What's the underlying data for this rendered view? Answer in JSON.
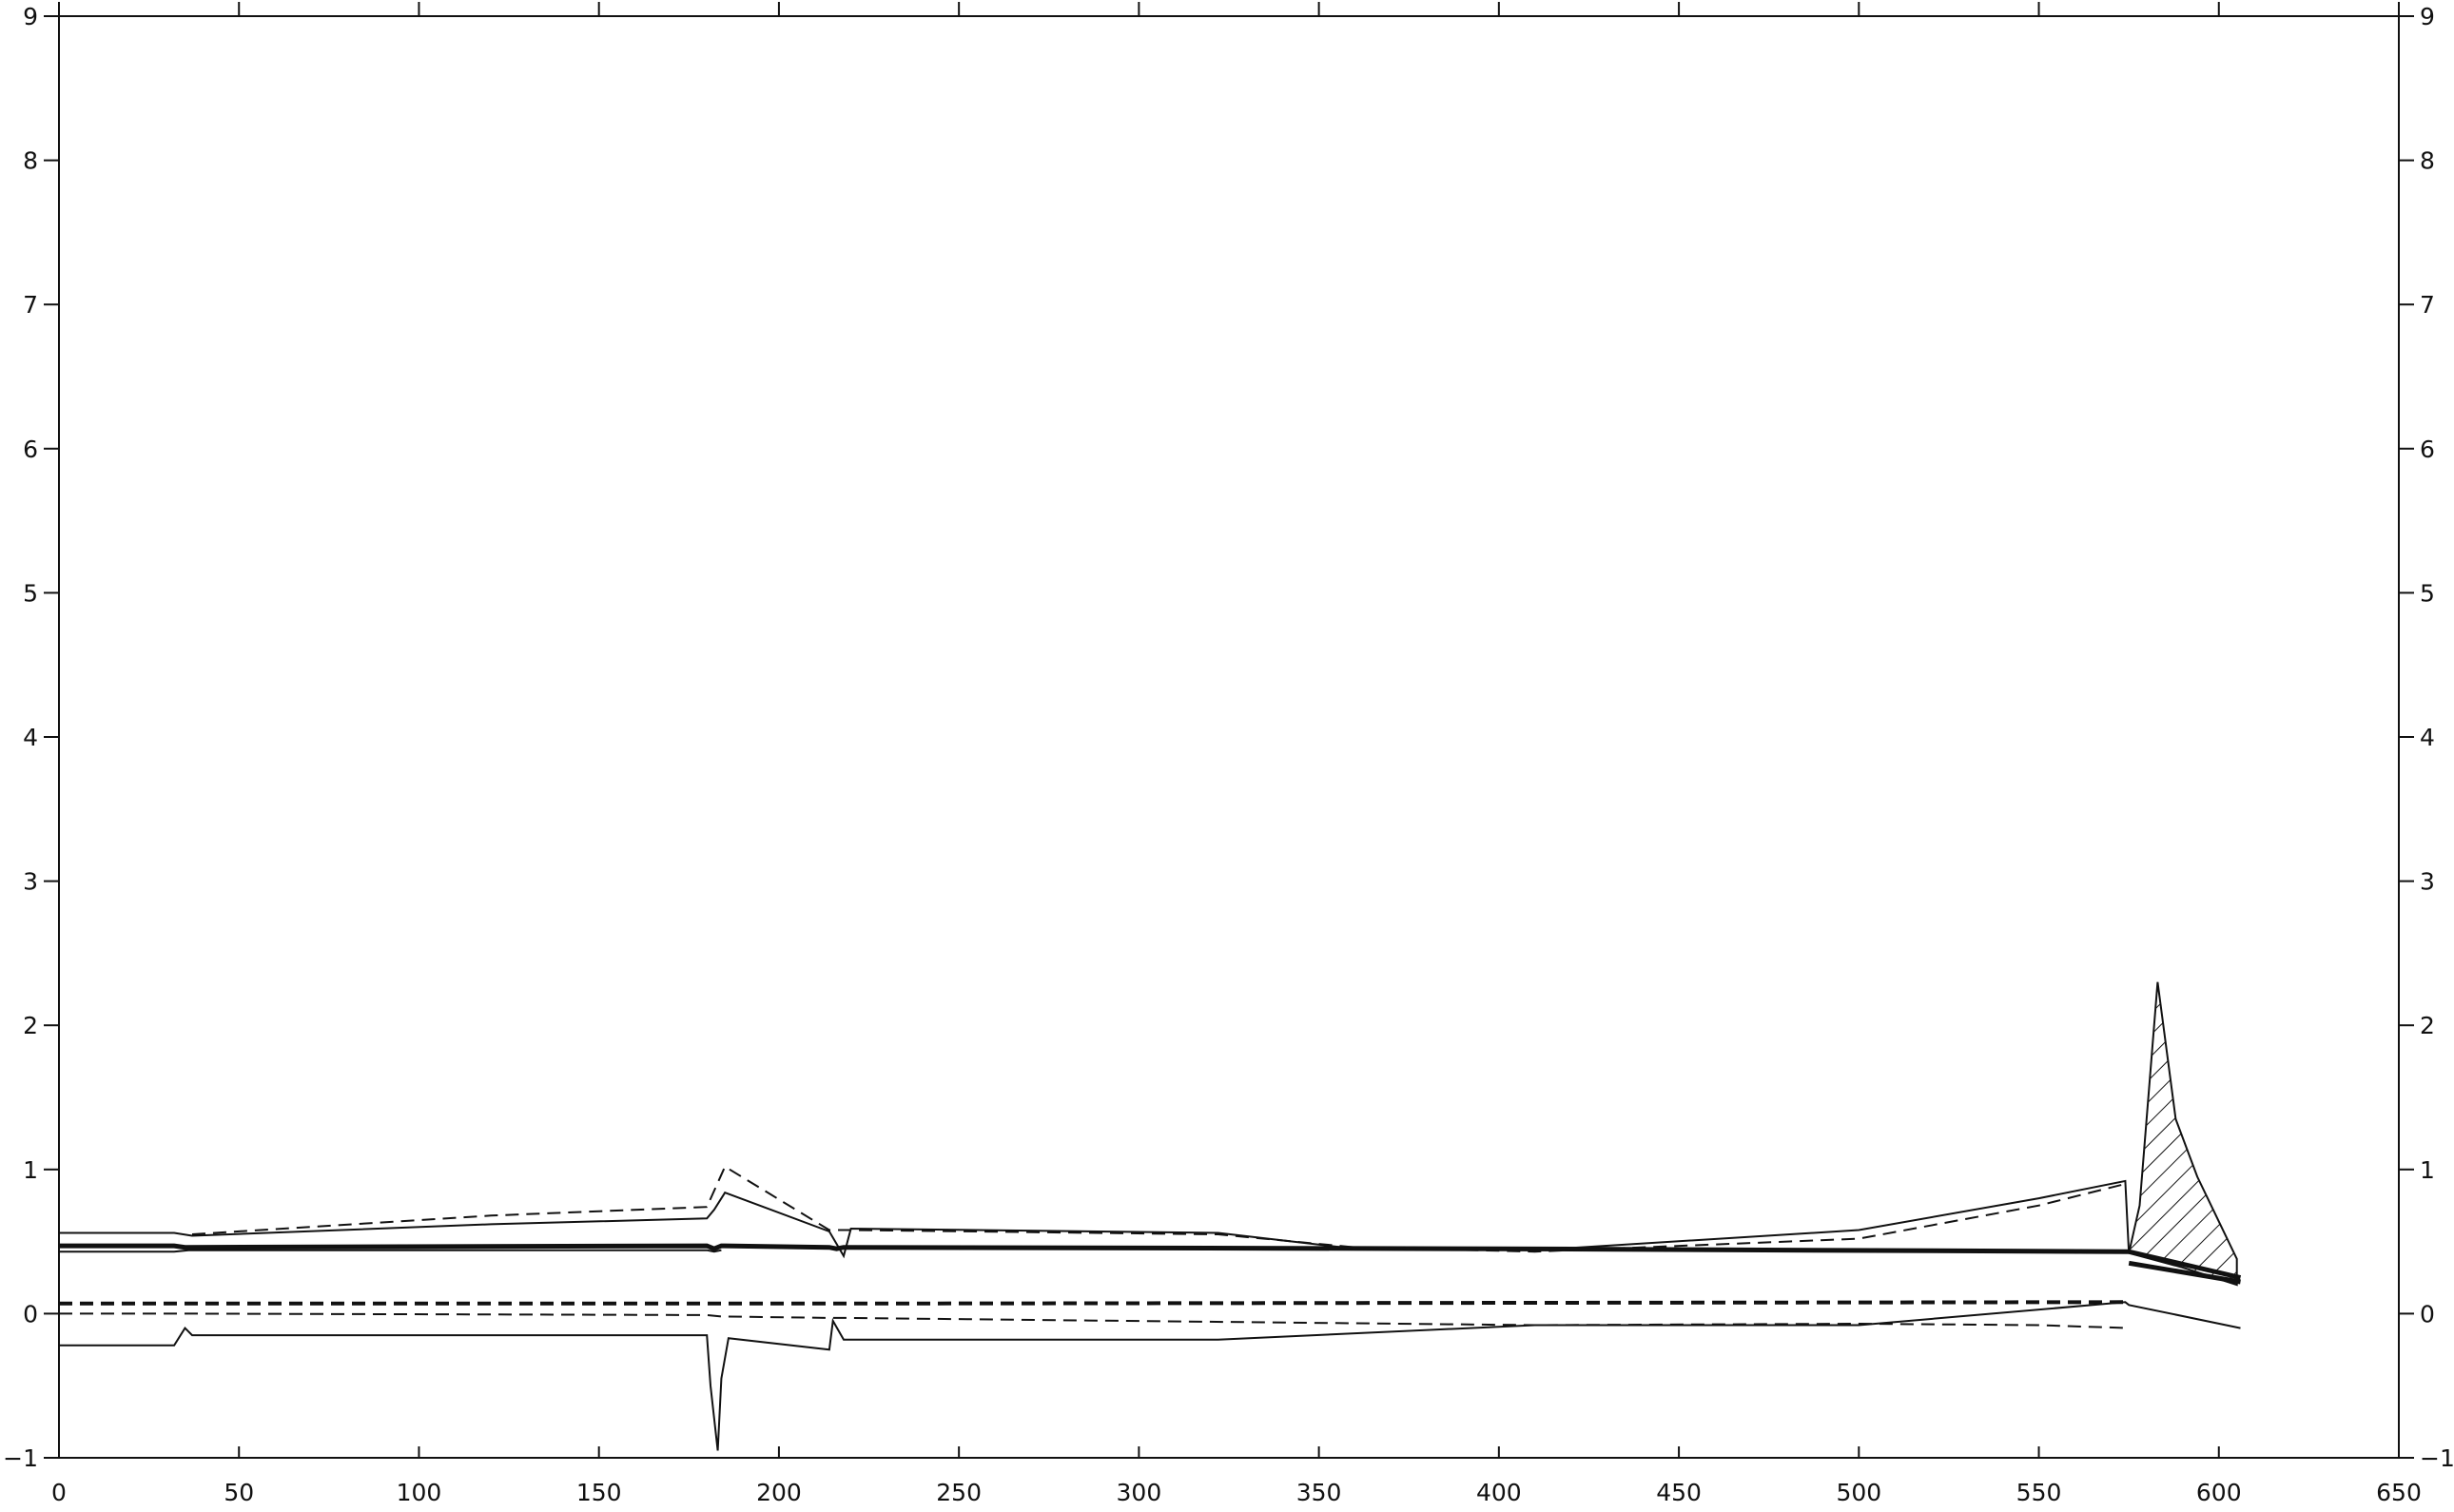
{
  "chart_data": {
    "type": "line",
    "title": "",
    "xlabel": "",
    "ylabel": "",
    "xlim": [
      0,
      650
    ],
    "ylim": [
      -1,
      9
    ],
    "x_ticks": [
      0,
      50,
      100,
      150,
      200,
      250,
      300,
      350,
      400,
      450,
      500,
      550,
      600,
      650
    ],
    "y_ticks": [
      -1,
      0,
      1,
      2,
      3,
      4,
      5,
      6,
      7,
      8,
      9
    ],
    "right_axis_ticks": [
      -1,
      0,
      1,
      2,
      3,
      4,
      5,
      6,
      7,
      8,
      9
    ],
    "grid": false,
    "legend": "none",
    "hatched_region": {
      "x_range": [
        575,
        605
      ],
      "upper": [
        [
          575,
          0.42
        ],
        [
          578,
          0.75
        ],
        [
          583,
          2.3
        ],
        [
          588,
          1.35
        ],
        [
          594,
          0.95
        ],
        [
          605,
          0.38
        ]
      ],
      "lower": [
        [
          575,
          0.42
        ],
        [
          590,
          0.32
        ],
        [
          605,
          0.2
        ]
      ]
    },
    "series": [
      {
        "style": "thick",
        "x": [
          0,
          32,
          35,
          180,
          182,
          184,
          214,
          216,
          218,
          400,
          575,
          606
        ],
        "y": [
          0.47,
          0.47,
          0.46,
          0.47,
          0.45,
          0.47,
          0.46,
          0.45,
          0.46,
          0.45,
          0.43,
          0.25
        ]
      },
      {
        "style": "solid",
        "x": [
          0,
          32,
          36,
          180,
          182,
          184
        ],
        "y": [
          0.43,
          0.43,
          0.44,
          0.44,
          0.43,
          0.44
        ]
      },
      {
        "style": "thick",
        "x": [
          575,
          606
        ],
        "y": [
          0.35,
          0.22
        ]
      },
      {
        "style": "solid",
        "x": [
          0,
          32,
          37,
          120,
          180,
          182,
          185,
          214,
          218,
          220,
          322,
          360,
          410,
          500,
          550,
          574,
          575
        ],
        "y": [
          0.56,
          0.56,
          0.54,
          0.62,
          0.66,
          0.72,
          0.84,
          0.57,
          0.4,
          0.59,
          0.56,
          0.45,
          0.44,
          0.58,
          0.8,
          0.92,
          0.42
        ]
      },
      {
        "style": "dashed",
        "x": [
          37,
          120,
          180,
          185,
          214,
          220,
          322,
          360,
          410,
          500,
          550,
          574
        ],
        "y": [
          0.55,
          0.68,
          0.74,
          1.02,
          0.58,
          0.58,
          0.55,
          0.46,
          0.43,
          0.52,
          0.75,
          0.9
        ]
      },
      {
        "style": "thick-dashed",
        "x": [
          0,
          35,
          180,
          182,
          214,
          218,
          575
        ],
        "y": [
          0.07,
          0.07,
          0.07,
          0.07,
          0.07,
          0.07,
          0.08
        ]
      },
      {
        "style": "dashed",
        "x": [
          0,
          35,
          180,
          184,
          214,
          218,
          410,
          500,
          550,
          575
        ],
        "y": [
          0.0,
          0.0,
          -0.01,
          -0.02,
          -0.03,
          -0.03,
          -0.08,
          -0.07,
          -0.08,
          -0.1
        ]
      },
      {
        "style": "solid",
        "x": [
          0,
          32,
          35,
          37,
          180,
          181,
          183,
          184,
          186,
          214,
          215,
          218,
          322,
          410,
          500,
          574,
          575,
          606
        ],
        "y": [
          -0.22,
          -0.22,
          -0.1,
          -0.15,
          -0.15,
          -0.5,
          -0.95,
          -0.45,
          -0.17,
          -0.25,
          -0.05,
          -0.18,
          -0.18,
          -0.08,
          -0.08,
          0.08,
          0.06,
          -0.1
        ]
      }
    ]
  }
}
